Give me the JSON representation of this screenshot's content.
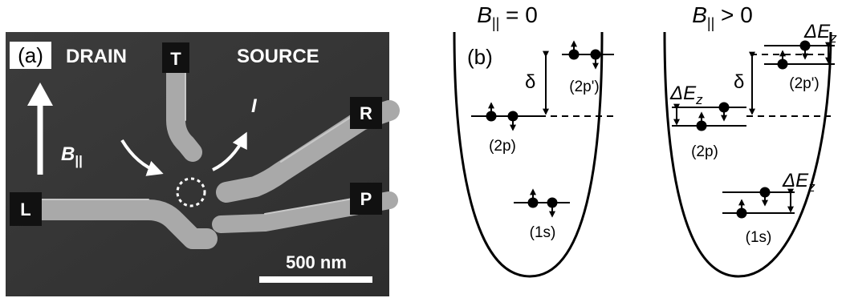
{
  "panel_a": {
    "label": "(a)",
    "drain": "DRAIN",
    "source": "SOURCE",
    "gates": {
      "top": "T",
      "right": "R",
      "left": "L",
      "plunger": "P"
    },
    "field_symbol": "B",
    "field_subscript": "||",
    "current_symbol": "I",
    "scale_bar": "500 nm"
  },
  "panel_b": {
    "label": "(b)",
    "titles": {
      "left_symbol": "B",
      "left_sub": "||",
      "left_rel": " = 0",
      "right_symbol": "B",
      "right_sub": "||",
      "right_rel": " > 0"
    },
    "splitting": "δ",
    "zeeman_delta": "ΔE",
    "zeeman_sub": "z",
    "levels": {
      "excited": "(2p')",
      "p": "(2p)",
      "ground": "(1s)"
    }
  }
}
